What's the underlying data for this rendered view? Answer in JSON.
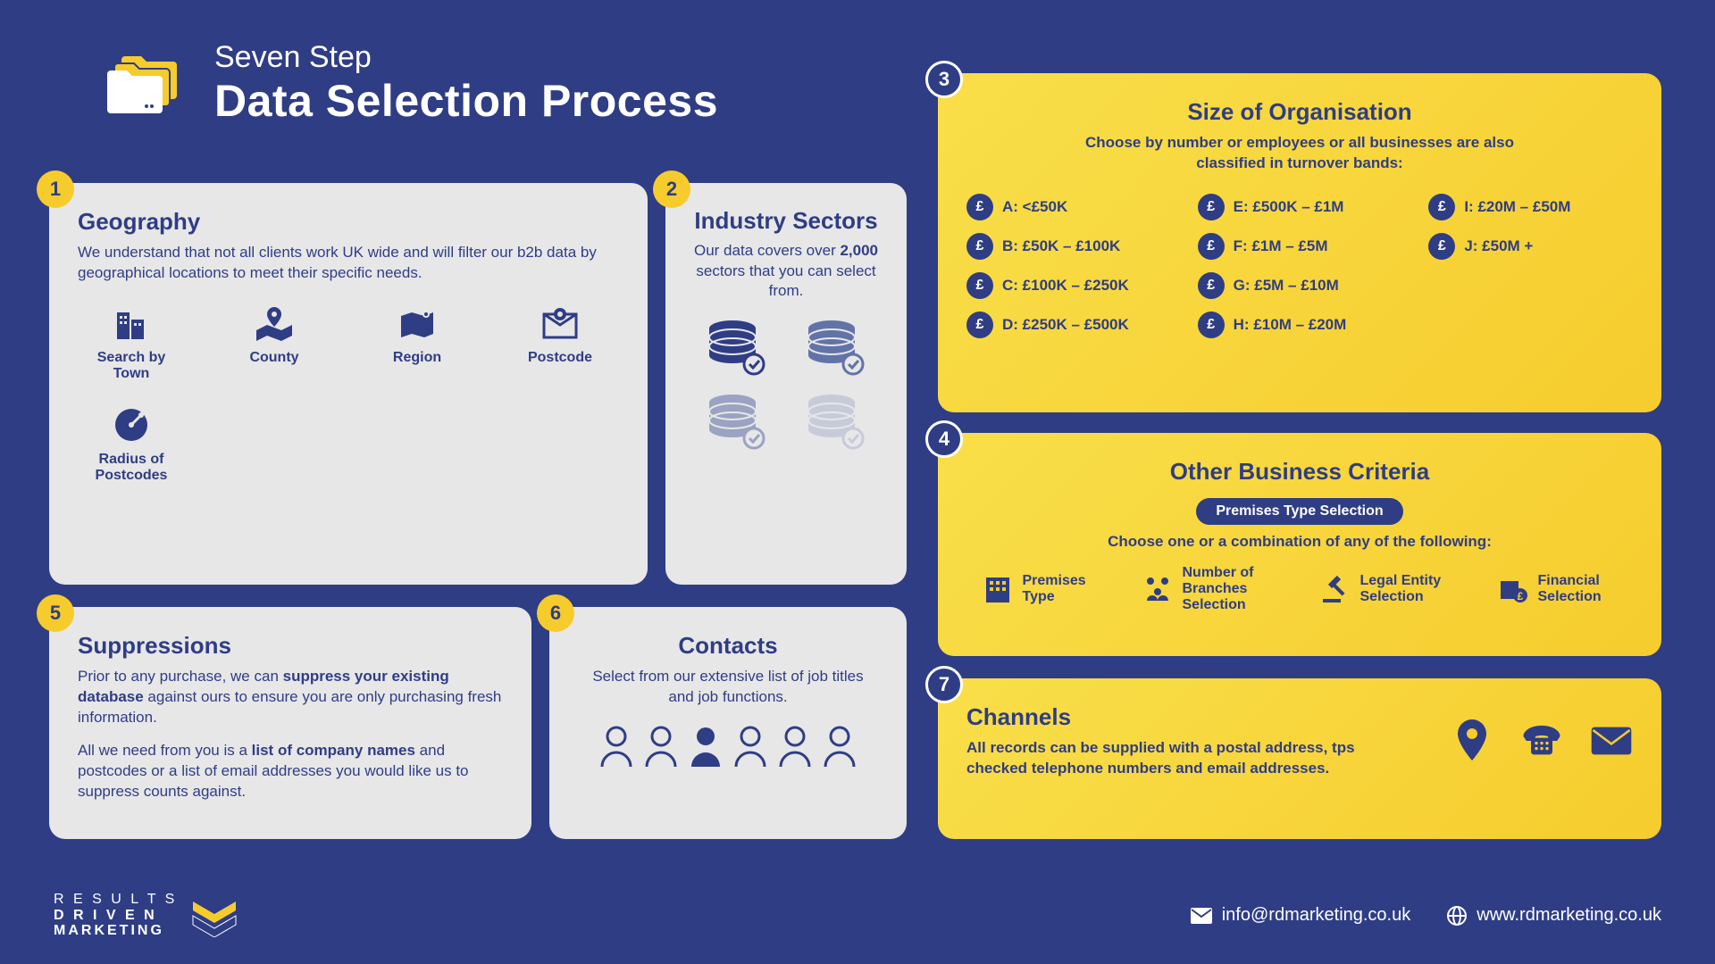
{
  "colors": {
    "bg_navy": "#2f3d85",
    "card_light": "#e7e7e8",
    "card_yellow_from": "#f9df4a",
    "card_yellow_to": "#f6cc2d",
    "text_navy": "#2f3d85",
    "white": "#ffffff"
  },
  "header": {
    "line1": "Seven Step",
    "line2": "Data Selection Process"
  },
  "steps": {
    "1": {
      "title": "Geography",
      "desc": "We understand that not all clients work UK wide and will filter our b2b data by geographical locations to meet their specific needs.",
      "items": [
        "Search by Town",
        "County",
        "Region",
        "Postcode",
        "Radius of Postcodes"
      ]
    },
    "2": {
      "title": "Industry Sectors",
      "desc_parts": [
        "Our data covers over ",
        "2,000",
        " sectors that you can select from."
      ]
    },
    "3": {
      "title": "Size of Organisation",
      "desc": "Choose by number or employees or all businesses are also classified in turnover bands:",
      "bands": [
        {
          "letter": "A",
          "label": "<£50K"
        },
        {
          "letter": "B",
          "label": "£50K – £100K"
        },
        {
          "letter": "C",
          "label": "£100K – £250K"
        },
        {
          "letter": "D",
          "label": "£250K – £500K"
        },
        {
          "letter": "E",
          "label": "£500K – £1M"
        },
        {
          "letter": "F",
          "label": "£1M – £5M"
        },
        {
          "letter": "G",
          "label": "£5M – £10M"
        },
        {
          "letter": "H",
          "label": "£10M – £20M"
        },
        {
          "letter": "I",
          "label": "£20M – £50M"
        },
        {
          "letter": "J",
          "label": "£50M +"
        }
      ]
    },
    "4": {
      "title": "Other Business Criteria",
      "pill": "Premises Type Selection",
      "desc": "Choose one or a combination of any of the following:",
      "items": [
        "Premises Type",
        "Number of Branches Selection",
        "Legal Entity Selection",
        "Financial Selection"
      ]
    },
    "5": {
      "title": "Suppressions",
      "p1_parts": [
        "Prior to any purchase, we can ",
        "suppress your existing database",
        " against ours to ensure you are only purchasing fresh information."
      ],
      "p2_parts": [
        "All we need from you is a ",
        "list of company names",
        " and postcodes or a list of email addresses you would like us to suppress counts against."
      ]
    },
    "6": {
      "title": "Contacts",
      "desc": "Select from our extensive list of job titles and job functions."
    },
    "7": {
      "title": "Channels",
      "desc": "All records can be supplied with a postal address, tps checked telephone numbers and email addresses."
    }
  },
  "footer": {
    "logo_l1": "R E S U L T S",
    "logo_l2": "D R I V E N",
    "logo_l3": "MARKETING",
    "email": "info@rdmarketing.co.uk",
    "website": "www.rdmarketing.co.uk"
  }
}
